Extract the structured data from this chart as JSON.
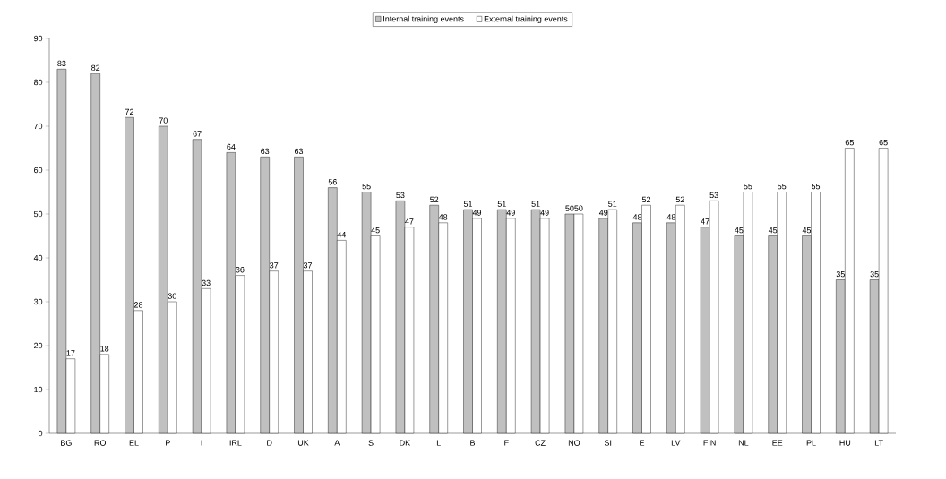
{
  "chart_data": {
    "type": "bar",
    "categories": [
      "BG",
      "RO",
      "EL",
      "P",
      "I",
      "IRL",
      "D",
      "UK",
      "A",
      "S",
      "DK",
      "L",
      "B",
      "F",
      "CZ",
      "NO",
      "SI",
      "E",
      "LV",
      "FIN",
      "NL",
      "EE",
      "PL",
      "HU",
      "LT"
    ],
    "series": [
      {
        "name": "Internal training events",
        "color": "#c0c0c0",
        "values": [
          83,
          82,
          72,
          70,
          67,
          64,
          63,
          63,
          56,
          55,
          53,
          52,
          51,
          51,
          51,
          50,
          49,
          48,
          48,
          47,
          45,
          45,
          45,
          35,
          35
        ]
      },
      {
        "name": "External training events",
        "color": "#ffffff",
        "values": [
          17,
          18,
          28,
          30,
          33,
          36,
          37,
          37,
          44,
          45,
          47,
          48,
          49,
          49,
          49,
          50,
          51,
          52,
          52,
          53,
          55,
          55,
          55,
          65,
          65
        ]
      }
    ],
    "ylim": [
      0,
      90
    ],
    "yticks": [
      0,
      10,
      20,
      30,
      40,
      50,
      60,
      70,
      80,
      90
    ],
    "data_labels": true,
    "legend": "top",
    "grid": false
  }
}
